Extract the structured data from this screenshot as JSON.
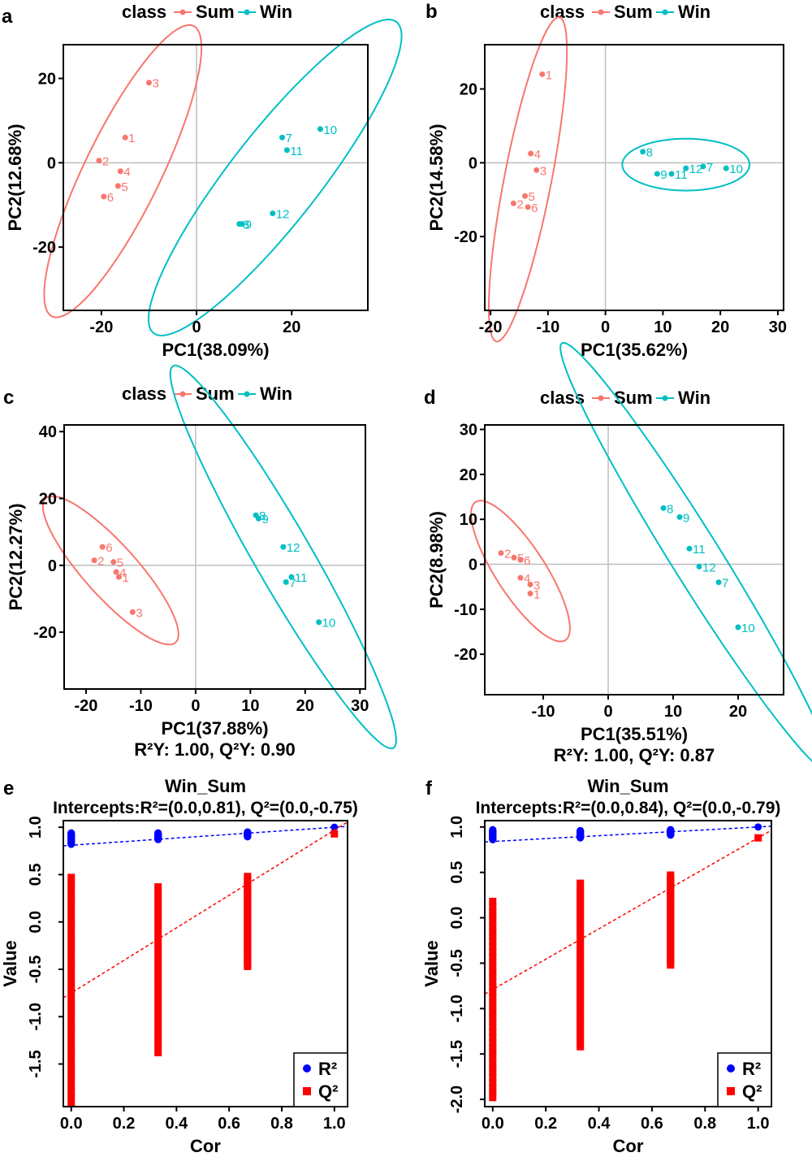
{
  "legend": {
    "title": "class",
    "groups": [
      "Sum",
      "Win"
    ]
  },
  "colors": {
    "Sum": "#F8766D",
    "Win": "#00BFC4",
    "R2": "#0000FF",
    "Q2": "#FF0000",
    "axis": "#000000",
    "refline": "#BEBEBE"
  },
  "chart_data": [
    {
      "panel": "a",
      "type": "scatter",
      "xlabel": "PC1(38.09%)",
      "ylabel": "PC2(12.68%)",
      "xlim": [
        -28,
        36
      ],
      "ylim": [
        -35,
        28
      ],
      "xticks": [
        -20,
        0,
        20
      ],
      "yticks": [
        -20,
        0,
        20
      ],
      "series": [
        {
          "name": "Sum",
          "points": [
            {
              "label": "1",
              "x": -15,
              "y": 6
            },
            {
              "label": "2",
              "x": -20.5,
              "y": 0.5
            },
            {
              "label": "3",
              "x": -10,
              "y": 19
            },
            {
              "label": "4",
              "x": -16,
              "y": -2
            },
            {
              "label": "5",
              "x": -16.5,
              "y": -5.5
            },
            {
              "label": "6",
              "x": -19.5,
              "y": -8
            }
          ],
          "ellipse": {
            "cx": -15.5,
            "cy": -2,
            "rx": 36,
            "ry": 8.5,
            "angle": 64
          }
        },
        {
          "name": "Win",
          "points": [
            {
              "label": "7",
              "x": 18,
              "y": 6
            },
            {
              "label": "8",
              "x": 9,
              "y": -14.5
            },
            {
              "label": "9",
              "x": 9.5,
              "y": -14.5
            },
            {
              "label": "10",
              "x": 26,
              "y": 8
            },
            {
              "label": "11",
              "x": 19,
              "y": 3
            },
            {
              "label": "12",
              "x": 16,
              "y": -12
            }
          ],
          "ellipse": {
            "cx": 16.5,
            "cy": -3.5,
            "rx": 44,
            "ry": 10,
            "angle": 52
          }
        }
      ]
    },
    {
      "panel": "b",
      "type": "scatter",
      "xlabel": "PC1(35.62%)",
      "ylabel": "PC2(14.58%)",
      "xlim": [
        -21,
        31
      ],
      "ylim": [
        -40,
        32
      ],
      "xticks": [
        -20,
        -10,
        0,
        10,
        20,
        30
      ],
      "yticks": [
        -20,
        0,
        20
      ],
      "series": [
        {
          "name": "Sum",
          "points": [
            {
              "label": "1",
              "x": -11,
              "y": 24
            },
            {
              "label": "2",
              "x": -16,
              "y": -11
            },
            {
              "label": "3",
              "x": -12,
              "y": -2
            },
            {
              "label": "4",
              "x": -13,
              "y": 2.5
            },
            {
              "label": "5",
              "x": -14,
              "y": -9
            },
            {
              "label": "6",
              "x": -13.5,
              "y": -12
            }
          ],
          "ellipse": {
            "cx": -13.5,
            "cy": -4.5,
            "rx": 35,
            "ry": 5,
            "angle": 79
          }
        },
        {
          "name": "Win",
          "points": [
            {
              "label": "7",
              "x": 17,
              "y": -1
            },
            {
              "label": "8",
              "x": 6.5,
              "y": 3
            },
            {
              "label": "9",
              "x": 9,
              "y": -3
            },
            {
              "label": "10",
              "x": 21,
              "y": -1.5
            },
            {
              "label": "11",
              "x": 11.5,
              "y": -3
            },
            {
              "label": "12",
              "x": 14,
              "y": -1.5
            }
          ],
          "ellipse": {
            "cx": 14,
            "cy": -0.5,
            "rx": 13.5,
            "ry": 5.5,
            "angle": 0
          }
        }
      ]
    },
    {
      "panel": "c",
      "type": "scatter",
      "xlabel": "PC1(37.88%)",
      "ylabel": "PC2(12.27%)",
      "xlim": [
        -24,
        31
      ],
      "ylim": [
        -37,
        42
      ],
      "xticks": [
        -20,
        -10,
        0,
        10,
        20,
        30
      ],
      "yticks": [
        -20,
        0,
        20,
        40
      ],
      "subtitle": "R²Y: 1.00, Q²Y: 0.90",
      "series": [
        {
          "name": "Sum",
          "points": [
            {
              "label": "1",
              "x": -14,
              "y": -3.5
            },
            {
              "label": "2",
              "x": -18.5,
              "y": 1.5
            },
            {
              "label": "3",
              "x": -11.5,
              "y": -14
            },
            {
              "label": "4",
              "x": -14.5,
              "y": -2
            },
            {
              "label": "5",
              "x": -15,
              "y": 1
            },
            {
              "label": "6",
              "x": -17,
              "y": 5.5
            }
          ],
          "ellipse": {
            "cx": -15.5,
            "cy": -1.5,
            "rx": 22,
            "ry": 6,
            "angle": -48
          }
        },
        {
          "name": "Win",
          "points": [
            {
              "label": "7",
              "x": 16.5,
              "y": -5
            },
            {
              "label": "8",
              "x": 11,
              "y": 15
            },
            {
              "label": "9",
              "x": 11.5,
              "y": 14
            },
            {
              "label": "10",
              "x": 22.5,
              "y": -17
            },
            {
              "label": "11",
              "x": 17.5,
              "y": -3.5
            },
            {
              "label": "12",
              "x": 16,
              "y": 5.5
            }
          ],
          "ellipse": {
            "cx": 16,
            "cy": 2.5,
            "rx": 50,
            "ry": 6.5,
            "angle": -60
          }
        }
      ]
    },
    {
      "panel": "d",
      "type": "scatter",
      "xlabel": "PC1(35.51%)",
      "ylabel": "PC2(8.98%)",
      "xlim": [
        -19,
        27
      ],
      "ylim": [
        -29,
        31
      ],
      "xticks": [
        -10,
        0,
        10,
        20
      ],
      "yticks": [
        -20,
        -10,
        0,
        10,
        20,
        30
      ],
      "subtitle": "R²Y: 1.00, Q²Y: 0.87",
      "series": [
        {
          "name": "Sum",
          "points": [
            {
              "label": "1",
              "x": -12,
              "y": -6.5
            },
            {
              "label": "2",
              "x": -16.5,
              "y": 2.5
            },
            {
              "label": "3",
              "x": -12,
              "y": -4.5
            },
            {
              "label": "4",
              "x": -13.5,
              "y": -3
            },
            {
              "label": "5",
              "x": -14.5,
              "y": 1.5
            },
            {
              "label": "6",
              "x": -13.5,
              "y": 1
            }
          ],
          "ellipse": {
            "cx": -13.5,
            "cy": -1.5,
            "rx": 15,
            "ry": 4.5,
            "angle": -57
          }
        },
        {
          "name": "Win",
          "points": [
            {
              "label": "7",
              "x": 17,
              "y": -4
            },
            {
              "label": "8",
              "x": 8.5,
              "y": 12.5
            },
            {
              "label": "9",
              "x": 11,
              "y": 10.5
            },
            {
              "label": "10",
              "x": 20,
              "y": -14
            },
            {
              "label": "11",
              "x": 12.5,
              "y": 3.5
            },
            {
              "label": "12",
              "x": 14,
              "y": -0.5
            }
          ],
          "ellipse": {
            "cx": 13.5,
            "cy": 1.5,
            "rx": 46,
            "ry": 4.5,
            "angle": -58
          }
        }
      ]
    },
    {
      "panel": "e",
      "type": "scatter",
      "title": "Win_Sum",
      "subtitle": "Intercepts:R²=(0.0,0.81), Q²=(0.0,-0.75)",
      "xlabel": "Cor",
      "ylabel": "Value",
      "xlim": [
        -0.03,
        1.05
      ],
      "ylim": [
        -1.95,
        1.07
      ],
      "xticks": [
        0.0,
        0.2,
        0.4,
        0.6,
        0.8,
        1.0
      ],
      "yticks": [
        -1.5,
        -1.0,
        -0.5,
        0.0,
        0.5,
        1.0
      ],
      "legend": [
        "R²",
        "Q²"
      ],
      "series": [
        {
          "name": "R²",
          "marker": "circle",
          "columns": [
            {
              "x": 0.0,
              "min": 0.82,
              "max": 0.94
            },
            {
              "x": 0.33,
              "min": 0.87,
              "max": 0.94
            },
            {
              "x": 0.67,
              "min": 0.9,
              "max": 0.95
            },
            {
              "x": 1.0,
              "min": 1.0,
              "max": 1.0
            }
          ],
          "fit": {
            "intercept": 0.81,
            "slope": 0.19
          }
        },
        {
          "name": "Q²",
          "marker": "square",
          "columns": [
            {
              "x": 0.0,
              "min": -1.92,
              "max": 0.47
            },
            {
              "x": 0.33,
              "min": -1.38,
              "max": 0.37
            },
            {
              "x": 0.67,
              "min": -0.47,
              "max": 0.48
            },
            {
              "x": 1.0,
              "min": 0.93,
              "max": 0.93
            }
          ],
          "fit": {
            "intercept": -0.75,
            "slope": 1.72
          }
        }
      ]
    },
    {
      "panel": "f",
      "type": "scatter",
      "title": "Win_Sum",
      "subtitle": "Intercepts:R²=(0.0,0.84), Q²=(0.0,-0.79)",
      "xlabel": "Cor",
      "ylabel": "Value",
      "xlim": [
        -0.03,
        1.05
      ],
      "ylim": [
        -2.08,
        1.07
      ],
      "xticks": [
        0.0,
        0.2,
        0.4,
        0.6,
        0.8,
        1.0
      ],
      "yticks": [
        -2.0,
        -1.5,
        -1.0,
        -0.5,
        0.0,
        0.5,
        1.0
      ],
      "legend": [
        "R²",
        "Q²"
      ],
      "series": [
        {
          "name": "R²",
          "marker": "circle",
          "columns": [
            {
              "x": 0.0,
              "min": 0.86,
              "max": 0.97
            },
            {
              "x": 0.33,
              "min": 0.88,
              "max": 0.96
            },
            {
              "x": 0.67,
              "min": 0.91,
              "max": 0.97
            },
            {
              "x": 1.0,
              "min": 1.0,
              "max": 1.0
            }
          ],
          "fit": {
            "intercept": 0.84,
            "slope": 0.16
          }
        },
        {
          "name": "Q²",
          "marker": "square",
          "columns": [
            {
              "x": 0.0,
              "min": -1.98,
              "max": 0.18
            },
            {
              "x": 0.33,
              "min": -1.42,
              "max": 0.38
            },
            {
              "x": 0.67,
              "min": -0.52,
              "max": 0.47
            },
            {
              "x": 1.0,
              "min": 0.88,
              "max": 0.88
            }
          ],
          "fit": {
            "intercept": -0.79,
            "slope": 1.67
          }
        }
      ]
    }
  ]
}
